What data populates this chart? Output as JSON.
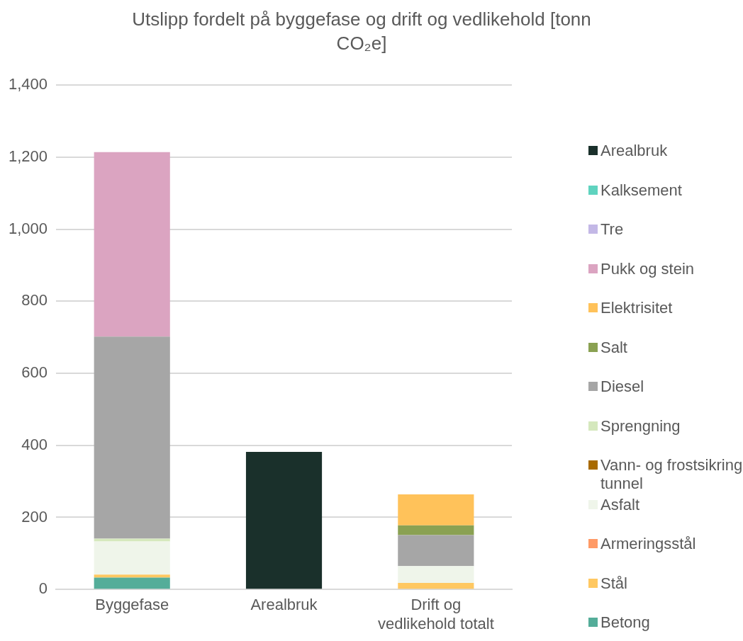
{
  "chart_data": {
    "type": "bar",
    "title": "Utslipp fordelt på byggefase og drift og vedlikehold [tonn CO₂e]",
    "categories": [
      "Byggefase",
      "Arealbruk",
      "Drift og vedlikehold totalt"
    ],
    "stacked": true,
    "ylim": [
      0,
      1400
    ],
    "yticks": [
      0,
      200,
      400,
      600,
      800,
      {
        "value": 1000,
        "label": "1,000"
      },
      {
        "value": 1200,
        "label": "1,200"
      },
      {
        "value": 1400,
        "label": "1,400"
      }
    ],
    "grid": "y",
    "legend": "right",
    "series": [
      {
        "name": "Betong",
        "color": "#54ad99",
        "values": [
          33,
          0,
          0
        ]
      },
      {
        "name": "Stål",
        "color": "#ffc861",
        "values": [
          8,
          0,
          18
        ]
      },
      {
        "name": "Armeringsstål",
        "color": "#ff9a66",
        "values": [
          0,
          0,
          0
        ]
      },
      {
        "name": "Asfalt",
        "color": "#eff5ea",
        "values": [
          92,
          0,
          47
        ]
      },
      {
        "name": "Vann- og frostsikring tunnel",
        "color": "#a86a00",
        "values": [
          0,
          0,
          0
        ]
      },
      {
        "name": "Sprengning",
        "color": "#d5e8bd",
        "values": [
          8,
          0,
          0
        ]
      },
      {
        "name": "Diesel",
        "color": "#a6a6a6",
        "values": [
          561,
          0,
          86
        ]
      },
      {
        "name": "Salt",
        "color": "#8aa152",
        "values": [
          0,
          0,
          27
        ]
      },
      {
        "name": "Elektrisitet",
        "color": "#ffc25a",
        "values": [
          0,
          0,
          86
        ]
      },
      {
        "name": "Pukk og stein",
        "color": "#dba4c1",
        "values": [
          512,
          0,
          0
        ]
      },
      {
        "name": "Tre",
        "color": "#c3b8e6",
        "values": [
          0,
          0,
          0
        ]
      },
      {
        "name": "Kalksement",
        "color": "#5fd3bf",
        "values": [
          0,
          0,
          0
        ]
      },
      {
        "name": "Arealbruk",
        "color": "#1a302b",
        "values": [
          0,
          382,
          0
        ]
      }
    ]
  }
}
